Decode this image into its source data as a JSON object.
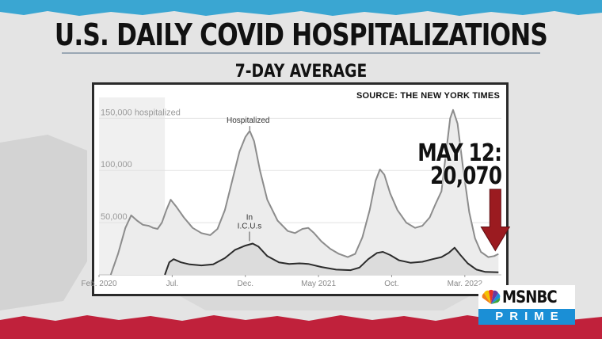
{
  "title": "U.S. DAILY COVID HOSPITALIZATIONS",
  "subtitle": "7-DAY AVERAGE",
  "source": "SOURCE: THE NEW YORK TIMES",
  "callout": {
    "line1": "MAY 12:",
    "line2": "20,070"
  },
  "logo": {
    "name": "MSNBC",
    "sub": "PRIME"
  },
  "colors": {
    "hospitalized_line": "#8c8c8c",
    "icu_line": "#2b2b2b",
    "arrow": "#9b1b20",
    "logo_blue": "#1b8fd6"
  },
  "chart_data": {
    "type": "area",
    "ylim": [
      0,
      170000
    ],
    "yticks": [
      {
        "value": 50000,
        "label": "50,000"
      },
      {
        "value": 100000,
        "label": "100,000"
      },
      {
        "value": 150000,
        "label": "150,000 hospitalized"
      }
    ],
    "xticks": [
      {
        "x": 0,
        "label": "Feb. 2020"
      },
      {
        "x": 5,
        "label": "Jul."
      },
      {
        "x": 10,
        "label": "Dec."
      },
      {
        "x": 15,
        "label": "May 2021"
      },
      {
        "x": 20,
        "label": "Oct."
      },
      {
        "x": 25,
        "label": "Mar. 2022"
      }
    ],
    "xlim": [
      0,
      27.5
    ],
    "shaded_region": [
      0,
      4.5
    ],
    "series": [
      {
        "name": "Hospitalized",
        "points": [
          [
            0.8,
            0
          ],
          [
            1.3,
            20000
          ],
          [
            1.8,
            45000
          ],
          [
            2.2,
            57000
          ],
          [
            2.6,
            52000
          ],
          [
            3.0,
            48000
          ],
          [
            3.4,
            47000
          ],
          [
            3.7,
            45000
          ],
          [
            4.0,
            44000
          ],
          [
            4.3,
            50000
          ],
          [
            4.6,
            62000
          ],
          [
            4.9,
            72000
          ],
          [
            5.3,
            65000
          ],
          [
            5.8,
            55000
          ],
          [
            6.4,
            45000
          ],
          [
            7.0,
            40000
          ],
          [
            7.6,
            38000
          ],
          [
            8.1,
            44000
          ],
          [
            8.6,
            62000
          ],
          [
            9.1,
            90000
          ],
          [
            9.6,
            118000
          ],
          [
            10.0,
            132000
          ],
          [
            10.3,
            138000
          ],
          [
            10.6,
            128000
          ],
          [
            11.0,
            100000
          ],
          [
            11.5,
            72000
          ],
          [
            12.2,
            52000
          ],
          [
            12.9,
            42000
          ],
          [
            13.4,
            40000
          ],
          [
            13.9,
            44000
          ],
          [
            14.3,
            45000
          ],
          [
            14.7,
            40000
          ],
          [
            15.2,
            32000
          ],
          [
            15.8,
            25000
          ],
          [
            16.4,
            20000
          ],
          [
            17.0,
            17000
          ],
          [
            17.5,
            20000
          ],
          [
            18.0,
            36000
          ],
          [
            18.5,
            62000
          ],
          [
            18.9,
            90000
          ],
          [
            19.2,
            101000
          ],
          [
            19.5,
            96000
          ],
          [
            19.9,
            78000
          ],
          [
            20.4,
            62000
          ],
          [
            21.0,
            50000
          ],
          [
            21.6,
            45000
          ],
          [
            22.1,
            47000
          ],
          [
            22.6,
            55000
          ],
          [
            23.0,
            68000
          ],
          [
            23.4,
            80000
          ],
          [
            23.7,
            115000
          ],
          [
            24.0,
            150000
          ],
          [
            24.2,
            158000
          ],
          [
            24.5,
            145000
          ],
          [
            24.9,
            100000
          ],
          [
            25.3,
            60000
          ],
          [
            25.7,
            35000
          ],
          [
            26.1,
            22000
          ],
          [
            26.6,
            17000
          ],
          [
            27.0,
            18000
          ],
          [
            27.3,
            20070
          ]
        ]
      },
      {
        "name": "In I.C.U.s",
        "points": [
          [
            4.5,
            0
          ],
          [
            4.8,
            12000
          ],
          [
            5.1,
            15000
          ],
          [
            5.6,
            12000
          ],
          [
            6.2,
            10000
          ],
          [
            7.0,
            9000
          ],
          [
            7.8,
            10000
          ],
          [
            8.6,
            16000
          ],
          [
            9.3,
            24000
          ],
          [
            10.0,
            28000
          ],
          [
            10.5,
            30000
          ],
          [
            10.9,
            27000
          ],
          [
            11.5,
            18000
          ],
          [
            12.3,
            12000
          ],
          [
            13.0,
            10500
          ],
          [
            13.7,
            11000
          ],
          [
            14.3,
            10500
          ],
          [
            15.2,
            7500
          ],
          [
            16.2,
            5000
          ],
          [
            17.2,
            4500
          ],
          [
            17.8,
            7000
          ],
          [
            18.4,
            15000
          ],
          [
            19.0,
            21000
          ],
          [
            19.4,
            22000
          ],
          [
            19.9,
            19000
          ],
          [
            20.5,
            14000
          ],
          [
            21.3,
            11500
          ],
          [
            22.1,
            12500
          ],
          [
            22.8,
            15000
          ],
          [
            23.4,
            17000
          ],
          [
            23.9,
            21000
          ],
          [
            24.3,
            26000
          ],
          [
            24.7,
            19000
          ],
          [
            25.2,
            11000
          ],
          [
            25.8,
            5000
          ],
          [
            26.4,
            2800
          ],
          [
            27.3,
            2500
          ]
        ]
      }
    ],
    "annotations": [
      {
        "series": "Hospitalized",
        "text": "Hospitalized"
      },
      {
        "series": "In I.C.U.s",
        "text": [
          "In",
          "I.C.U.s"
        ]
      }
    ]
  }
}
